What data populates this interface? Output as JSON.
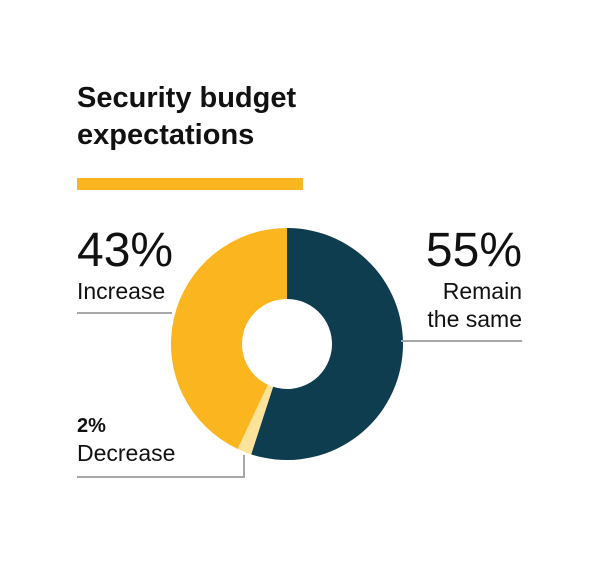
{
  "chart_data": {
    "type": "pie",
    "title": "Security budget expectations",
    "slices": [
      {
        "value": 55,
        "percent_label": "55%",
        "label_lines": [
          "Remain",
          "the same"
        ],
        "color": "#0e3d4f"
      },
      {
        "value": 2,
        "percent_label": "2%",
        "label_lines": [
          "Decrease"
        ],
        "color": "#fde39a"
      },
      {
        "value": 43,
        "percent_label": "43%",
        "label_lines": [
          "Increase"
        ],
        "color": "#fbb61f"
      }
    ]
  },
  "colors": {
    "accent_bar": "#fbb61f",
    "leader_line": "#a8a8a8",
    "text": "#111111"
  }
}
